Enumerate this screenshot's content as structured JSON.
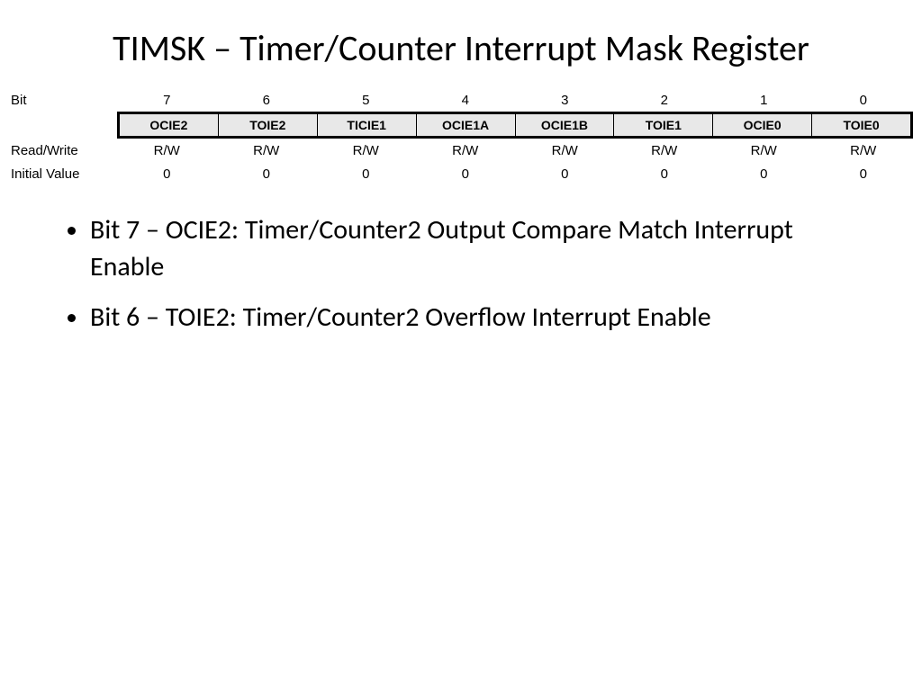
{
  "title": "TIMSK – Timer/Counter Interrupt Mask Register",
  "register": {
    "labels": {
      "bit": "Bit",
      "readwrite": "Read/Write",
      "initial": "Initial Value"
    },
    "bit_numbers": [
      "7",
      "6",
      "5",
      "4",
      "3",
      "2",
      "1",
      "0"
    ],
    "bit_names": [
      "OCIE2",
      "TOIE2",
      "TICIE1",
      "OCIE1A",
      "OCIE1B",
      "TOIE1",
      "OCIE0",
      "TOIE0"
    ],
    "readwrite": [
      "R/W",
      "R/W",
      "R/W",
      "R/W",
      "R/W",
      "R/W",
      "R/W",
      "R/W"
    ],
    "initial": [
      "0",
      "0",
      "0",
      "0",
      "0",
      "0",
      "0",
      "0"
    ],
    "name_cell_bg": "#e8e8e8",
    "border_color": "#000000"
  },
  "bullets": [
    "Bit 7 – OCIE2: Timer/Counter2 Output Compare Match Interrupt Enable",
    "Bit 6 – TOIE2: Timer/Counter2 Overflow Interrupt Enable"
  ]
}
